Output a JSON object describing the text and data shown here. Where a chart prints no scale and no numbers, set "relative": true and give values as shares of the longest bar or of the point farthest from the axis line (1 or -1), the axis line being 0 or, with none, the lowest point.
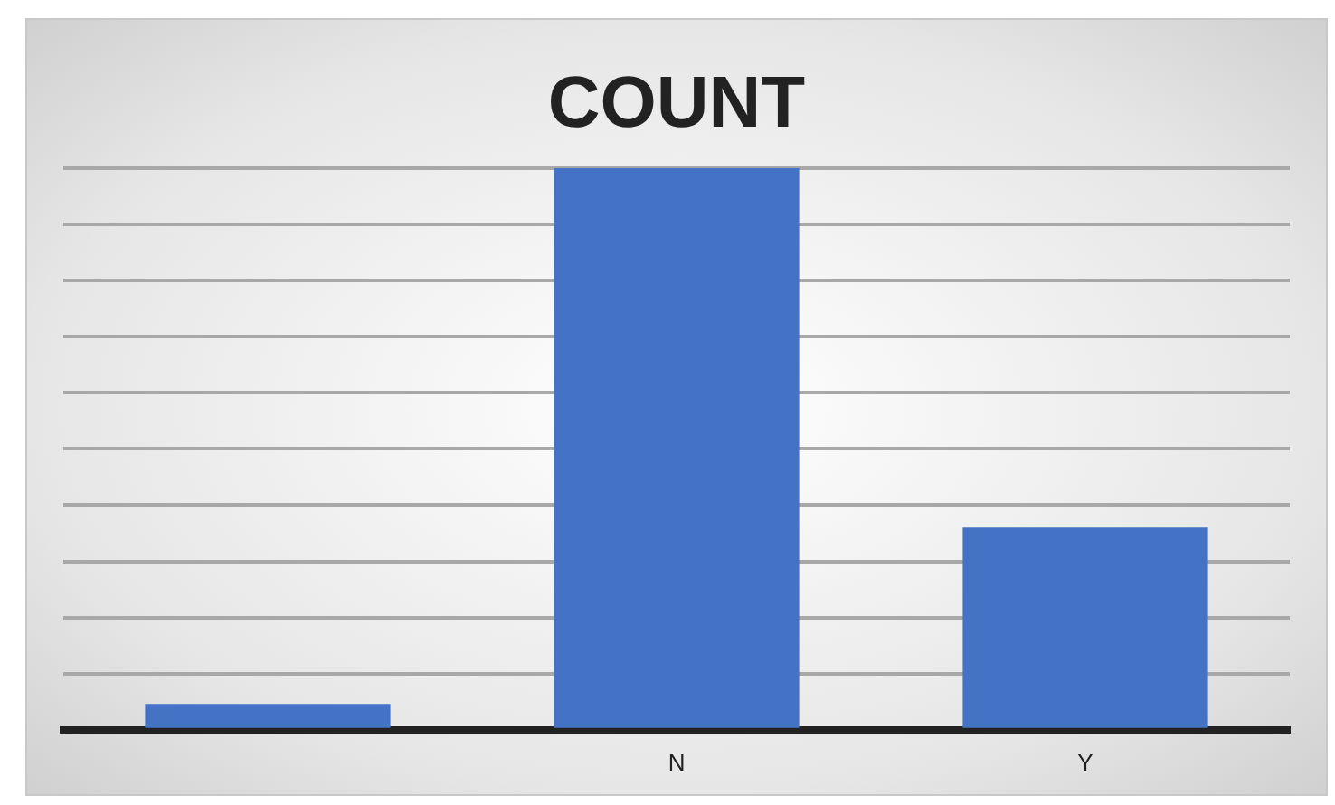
{
  "chart_data": {
    "type": "bar",
    "title": "COUNT",
    "categories": [
      null,
      "N",
      "Y"
    ],
    "values": [
      0.046,
      1,
      0.36
    ],
    "color": "#4472c4",
    "relative": true,
    "grid": true
  }
}
